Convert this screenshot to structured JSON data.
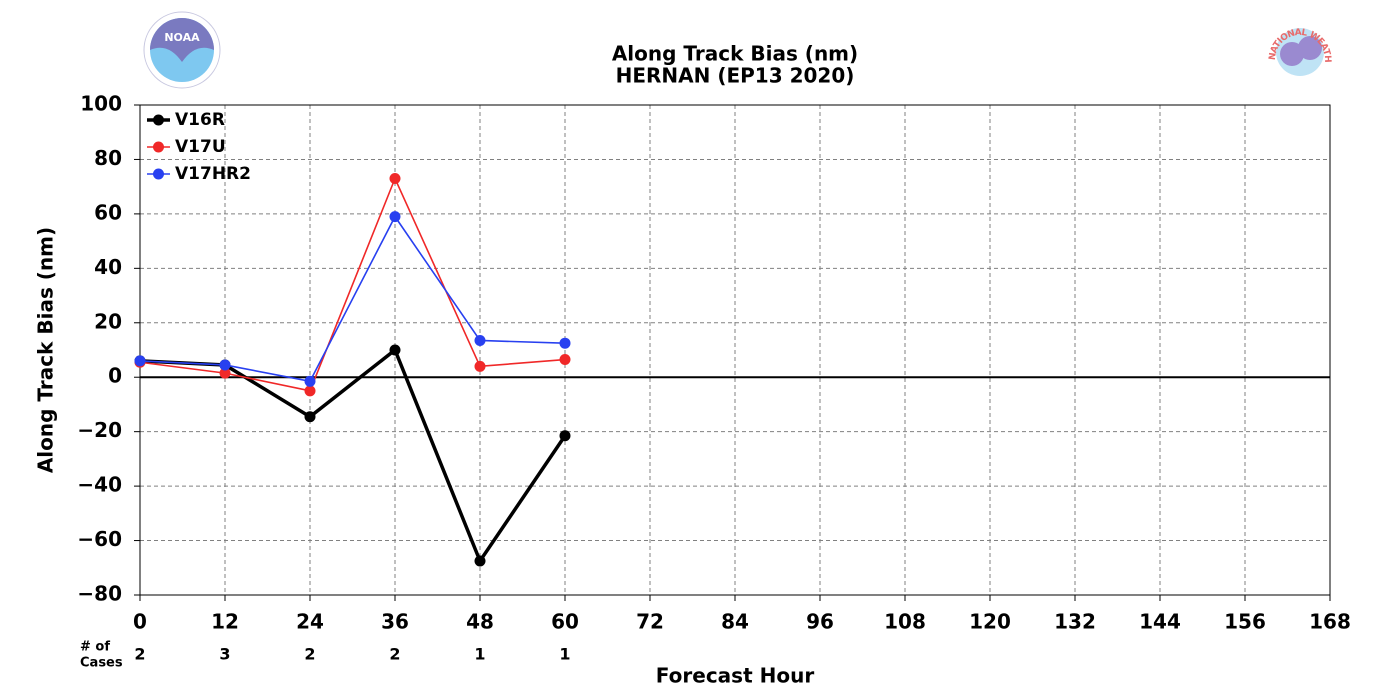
{
  "chart_data": {
    "type": "line",
    "title": "Along Track Bias (nm)",
    "subtitle": "HERNAN (EP13 2020)",
    "x_label": "Forecast Hour",
    "y_label": "Along Track Bias (nm)",
    "x": [
      0,
      12,
      24,
      36,
      48,
      60
    ],
    "series": [
      {
        "name": "V16R",
        "color": "#000000",
        "values": [
          6,
          4.5,
          -14.5,
          10,
          -67.5,
          -21.5
        ]
      },
      {
        "name": "V17U",
        "color": "#f02828",
        "values": [
          5.5,
          1.5,
          -5,
          73,
          4,
          6.5
        ]
      },
      {
        "name": "V17HR2",
        "color": "#2840f0",
        "values": [
          6,
          4.5,
          -1.5,
          59,
          13.5,
          12.5
        ]
      }
    ],
    "xlim": [
      0,
      168
    ],
    "xticks": [
      0,
      12,
      24,
      36,
      48,
      60,
      72,
      84,
      96,
      108,
      120,
      132,
      144,
      156,
      168
    ],
    "ylim": [
      -80,
      100
    ],
    "yticks": [
      {
        "value": -80,
        "label": "−80"
      },
      {
        "value": -60,
        "label": "−60"
      },
      {
        "value": -40,
        "label": "−40"
      },
      {
        "value": -20,
        "label": "−20"
      },
      0,
      20,
      40,
      60,
      80,
      100
    ],
    "grid": true,
    "legend": "upper left",
    "cases_label": [
      "# of",
      "Cases"
    ],
    "cases": [
      2,
      3,
      2,
      2,
      1,
      1
    ],
    "logos": {
      "left": "NOAA",
      "right": "NATIONAL WEATHER SERVICE"
    }
  }
}
